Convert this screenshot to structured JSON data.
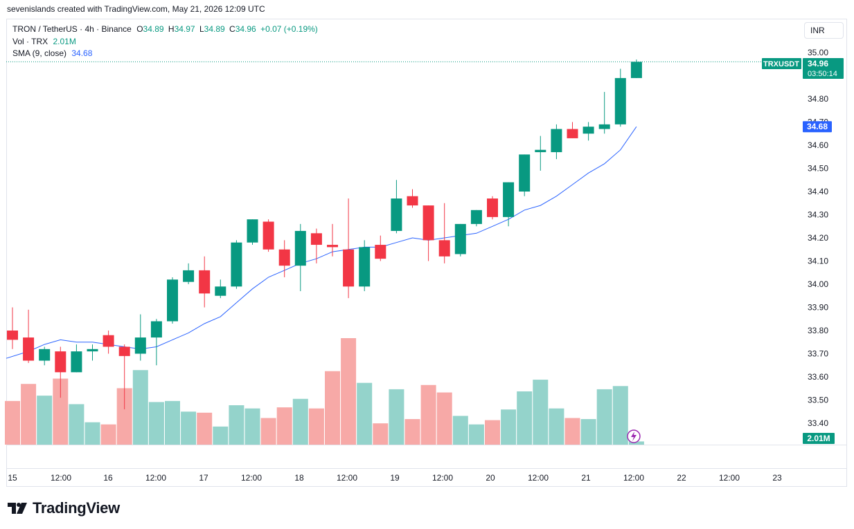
{
  "credit": "sevenislands created with TradingView.com, May 21, 2026 12:09 UTC",
  "legend": {
    "symbol": "TRON / TetherUS · 4h · Binance",
    "o_label": "O",
    "o_value": "34.89",
    "h_label": "H",
    "h_value": "34.97",
    "l_label": "L",
    "l_value": "34.89",
    "c_label": "C",
    "c_value": "34.96",
    "change": "+0.07 (+0.19%)",
    "vol_label": "Vol · TRX",
    "vol_value": "2.01M",
    "sma_label": "SMA (9, close)",
    "sma_value": "34.68"
  },
  "currency": "INR",
  "price_tag": {
    "symbol": "TRXUSDT",
    "price": "34.96",
    "countdown": "03:50:14"
  },
  "sma_tag": "34.68",
  "volume_tag": "2.01M",
  "logo_text": "TradingView",
  "colors": {
    "up": "#089981",
    "down": "#f23645",
    "up_vol": "#94d3cb",
    "down_vol": "#f7a9a7",
    "sma": "#2962ff",
    "tag_up": "#089981",
    "tag_sma": "#2962ff"
  },
  "chart_data": {
    "type": "candlestick",
    "y_ticks": [
      "35.00",
      "34.80",
      "34.70",
      "34.60",
      "34.50",
      "34.40",
      "34.30",
      "34.20",
      "34.10",
      "34.00",
      "33.90",
      "33.80",
      "33.70",
      "33.60",
      "33.50",
      "33.40"
    ],
    "ylim": [
      33.35,
      35.05
    ],
    "x_ticks": [
      "15",
      "12:00",
      "16",
      "12:00",
      "17",
      "12:00",
      "18",
      "12:00",
      "19",
      "12:00",
      "20",
      "12:00",
      "21",
      "12:00",
      "22",
      "12:00",
      "23"
    ],
    "candles": [
      {
        "o": 33.8,
        "h": 33.9,
        "l": 33.72,
        "c": 33.76
      },
      {
        "o": 33.77,
        "h": 33.89,
        "l": 33.66,
        "c": 33.67
      },
      {
        "o": 33.67,
        "h": 33.73,
        "l": 33.65,
        "c": 33.72
      },
      {
        "o": 33.71,
        "h": 33.73,
        "l": 33.51,
        "c": 33.62
      },
      {
        "o": 33.62,
        "h": 33.74,
        "l": 33.62,
        "c": 33.71
      },
      {
        "o": 33.71,
        "h": 33.74,
        "l": 33.67,
        "c": 33.72
      },
      {
        "o": 33.78,
        "h": 33.8,
        "l": 33.7,
        "c": 33.73
      },
      {
        "o": 33.73,
        "h": 33.74,
        "l": 33.46,
        "c": 33.69
      },
      {
        "o": 33.7,
        "h": 33.87,
        "l": 33.67,
        "c": 33.77
      },
      {
        "o": 33.77,
        "h": 33.85,
        "l": 33.65,
        "c": 33.84
      },
      {
        "o": 33.84,
        "h": 34.03,
        "l": 33.83,
        "c": 34.02
      },
      {
        "o": 34.01,
        "h": 34.09,
        "l": 34.0,
        "c": 34.06
      },
      {
        "o": 34.06,
        "h": 34.12,
        "l": 33.9,
        "c": 33.96
      },
      {
        "o": 33.95,
        "h": 34.02,
        "l": 33.94,
        "c": 33.99
      },
      {
        "o": 33.99,
        "h": 34.19,
        "l": 33.98,
        "c": 34.18
      },
      {
        "o": 34.18,
        "h": 34.28,
        "l": 34.17,
        "c": 34.28
      },
      {
        "o": 34.27,
        "h": 34.28,
        "l": 34.14,
        "c": 34.15
      },
      {
        "o": 34.15,
        "h": 34.19,
        "l": 34.03,
        "c": 34.08
      },
      {
        "o": 34.08,
        "h": 34.26,
        "l": 33.97,
        "c": 34.23
      },
      {
        "o": 34.22,
        "h": 34.24,
        "l": 34.09,
        "c": 34.17
      },
      {
        "o": 34.17,
        "h": 34.26,
        "l": 34.12,
        "c": 34.16
      },
      {
        "o": 34.15,
        "h": 34.37,
        "l": 33.94,
        "c": 33.99
      },
      {
        "o": 33.99,
        "h": 34.19,
        "l": 33.97,
        "c": 34.16
      },
      {
        "o": 34.17,
        "h": 34.21,
        "l": 34.1,
        "c": 34.11
      },
      {
        "o": 34.23,
        "h": 34.45,
        "l": 34.22,
        "c": 34.37
      },
      {
        "o": 34.38,
        "h": 34.41,
        "l": 34.33,
        "c": 34.34
      },
      {
        "o": 34.34,
        "h": 34.34,
        "l": 34.1,
        "c": 34.19
      },
      {
        "o": 34.19,
        "h": 34.35,
        "l": 34.09,
        "c": 34.12
      },
      {
        "o": 34.13,
        "h": 34.26,
        "l": 34.12,
        "c": 34.26
      },
      {
        "o": 34.26,
        "h": 34.32,
        "l": 34.25,
        "c": 34.32
      },
      {
        "o": 34.37,
        "h": 34.38,
        "l": 34.28,
        "c": 34.29
      },
      {
        "o": 34.29,
        "h": 34.44,
        "l": 34.25,
        "c": 34.44
      },
      {
        "o": 34.4,
        "h": 34.56,
        "l": 34.38,
        "c": 34.56
      },
      {
        "o": 34.57,
        "h": 34.64,
        "l": 34.49,
        "c": 34.58
      },
      {
        "o": 34.57,
        "h": 34.69,
        "l": 34.54,
        "c": 34.67
      },
      {
        "o": 34.67,
        "h": 34.7,
        "l": 34.63,
        "c": 34.63
      },
      {
        "o": 34.65,
        "h": 34.7,
        "l": 34.62,
        "c": 34.68
      },
      {
        "o": 34.67,
        "h": 34.83,
        "l": 34.65,
        "c": 34.69
      },
      {
        "o": 34.69,
        "h": 34.93,
        "l": 34.68,
        "c": 34.89
      },
      {
        "o": 34.89,
        "h": 34.97,
        "l": 34.89,
        "c": 34.96
      }
    ],
    "volume_relative": [
      0.41,
      0.57,
      0.46,
      0.62,
      0.38,
      0.21,
      0.19,
      0.53,
      0.7,
      0.4,
      0.41,
      0.31,
      0.3,
      0.17,
      0.37,
      0.34,
      0.25,
      0.35,
      0.43,
      0.34,
      0.69,
      1.0,
      0.58,
      0.2,
      0.52,
      0.24,
      0.56,
      0.49,
      0.27,
      0.19,
      0.23,
      0.33,
      0.5,
      0.61,
      0.34,
      0.25,
      0.24,
      0.52,
      0.55,
      0.03
    ],
    "sma": [
      33.68,
      33.71,
      33.74,
      33.76,
      33.75,
      33.75,
      33.74,
      33.73,
      33.72,
      33.73,
      33.76,
      33.79,
      33.83,
      33.86,
      33.92,
      33.98,
      34.03,
      34.06,
      34.09,
      34.11,
      34.14,
      34.15,
      34.16,
      34.16,
      34.18,
      34.2,
      34.19,
      34.2,
      34.21,
      34.22,
      34.25,
      34.28,
      34.32,
      34.34,
      34.38,
      34.43,
      34.48,
      34.52,
      34.58,
      34.68
    ]
  }
}
